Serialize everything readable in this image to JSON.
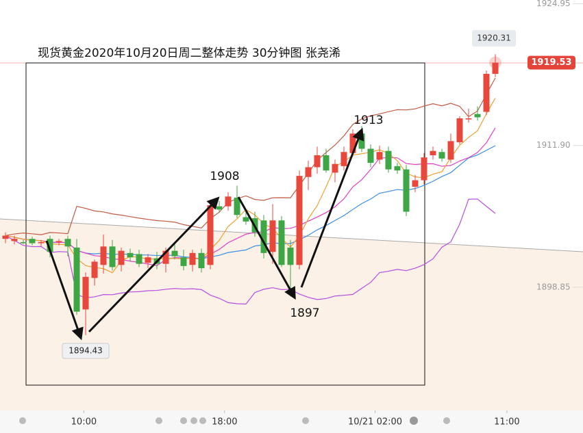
{
  "chart_data": {
    "type": "candlestick",
    "title": "现货黄金2020年10月20日周二整体走势  30分钟图 张尧浠",
    "open": [
      1903.3,
      1903.1,
      1903.0,
      1903.3,
      1902.9,
      1903.3,
      1903.0,
      1903.3,
      1902.5,
      1896.8,
      1899.7,
      1900.9,
      1902.6,
      1900.9,
      1902.0,
      1901.9,
      1901.1,
      1901.5,
      1901.0,
      1902.2,
      1901.6,
      1900.9,
      1902.0,
      1900.9,
      1906.3,
      1906.3,
      1907.1,
      1905.3,
      1905.2,
      1905.0,
      1902.1,
      1905.0,
      1902.5,
      1900.9,
      1909.0,
      1909.9,
      1911.0,
      1909.4,
      1910.0,
      1911.2,
      1913.0,
      1911.6,
      1910.6,
      1911.4,
      1910.0,
      1909.7,
      1908.1,
      1908.7,
      1911.0,
      1911.3,
      1910.6,
      1912.2,
      1914.3,
      1914.8,
      1915.0,
      1918.5
    ],
    "high": [
      1903.9,
      1903.6,
      1903.2,
      1903.5,
      1903.2,
      1903.6,
      1903.3,
      1903.6,
      1903.3,
      1900.2,
      1901.4,
      1903.7,
      1903.2,
      1902.5,
      1902.4,
      1902.3,
      1901.9,
      1902.1,
      1902.5,
      1902.8,
      1902.3,
      1902.3,
      1902.4,
      1906.9,
      1906.8,
      1907.6,
      1908.2,
      1905.9,
      1905.8,
      1905.5,
      1906.5,
      1905.4,
      1903.2,
      1909.6,
      1910.5,
      1911.8,
      1911.6,
      1910.6,
      1911.8,
      1913.4,
      1913.7,
      1912.0,
      1911.9,
      1911.8,
      1910.3,
      1910.1,
      1909.2,
      1911.2,
      1911.8,
      1911.6,
      1913.0,
      1914.6,
      1915.3,
      1915.5,
      1918.8,
      1920.31
    ],
    "low": [
      1902.9,
      1902.8,
      1902.8,
      1902.7,
      1902.6,
      1901.6,
      1902.7,
      1901.7,
      1896.3,
      1894.43,
      1899.0,
      1900.1,
      1900.4,
      1900.3,
      1901.2,
      1900.7,
      1900.6,
      1900.5,
      1900.2,
      1901.4,
      1900.4,
      1900.3,
      1900.2,
      1900.5,
      1905.7,
      1905.9,
      1905.2,
      1904.6,
      1903.5,
      1901.5,
      1901.0,
      1900.7,
      1898.0,
      1900.5,
      1907.8,
      1909.3,
      1909.4,
      1908.5,
      1909.6,
      1910.9,
      1911.3,
      1909.9,
      1910.2,
      1909.4,
      1909.3,
      1905.4,
      1907.6,
      1908.3,
      1910.6,
      1910.4,
      1910.3,
      1912.0,
      1914.0,
      1914.2,
      1914.7,
      1918.2
    ],
    "close": [
      1903.6,
      1903.3,
      1902.9,
      1902.9,
      1903.0,
      1902.1,
      1903.1,
      1902.6,
      1896.6,
      1899.8,
      1901.2,
      1902.6,
      1900.7,
      1902.2,
      1901.6,
      1901.0,
      1901.6,
      1901.0,
      1902.2,
      1901.7,
      1900.8,
      1902.0,
      1900.6,
      1906.4,
      1906.0,
      1907.2,
      1905.5,
      1904.9,
      1903.9,
      1902.0,
      1905.0,
      1900.9,
      1900.9,
      1909.1,
      1909.9,
      1911.0,
      1909.6,
      1910.2,
      1911.3,
      1913.0,
      1911.6,
      1910.3,
      1911.3,
      1909.7,
      1909.6,
      1905.8,
      1908.7,
      1910.8,
      1911.4,
      1910.7,
      1912.3,
      1914.4,
      1914.4,
      1914.5,
      1918.5,
      1919.53
    ],
    "up_color": "#e8483c",
    "down_color": "#3fa645",
    "last_price": 1919.53,
    "ylim": [
      1887.5,
      1925.3
    ],
    "yticks": [
      1924.95,
      {
        "value": 1911.9,
        "label": "1911.90"
      },
      1898.85
    ],
    "xticks": [
      {
        "value": 8.8,
        "label": "10:00"
      },
      {
        "value": 24.6,
        "label": "18:00"
      },
      {
        "value": 41.5,
        "label": "10/21 02:00"
      },
      {
        "value": 56.3,
        "label": "11:00"
      }
    ],
    "annotations": [
      "1908",
      "1913",
      "1897"
    ]
  }
}
